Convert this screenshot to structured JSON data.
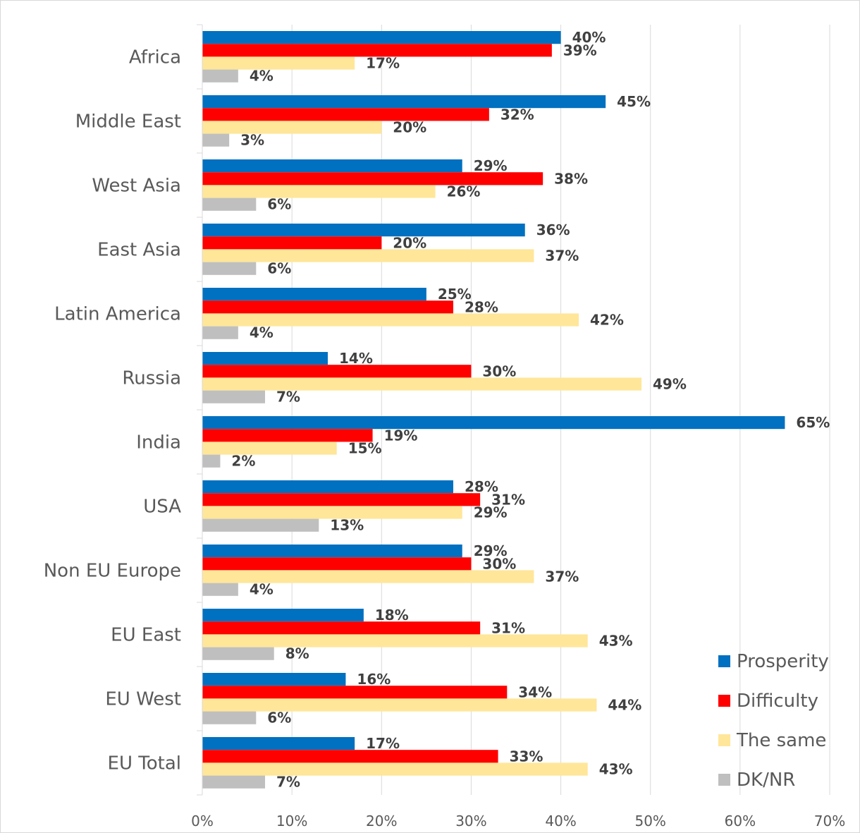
{
  "chart_data": {
    "type": "bar",
    "orientation": "horizontal",
    "categories": [
      "Africa",
      "Middle East",
      "West Asia",
      "East Asia",
      "Latin America",
      "Russia",
      "India",
      "USA",
      "Non EU Europe",
      "EU East",
      "EU West",
      "EU Total"
    ],
    "series": [
      {
        "name": "Prosperity",
        "color": "#0070c0",
        "values": [
          40,
          45,
          29,
          36,
          25,
          14,
          65,
          28,
          29,
          18,
          16,
          17
        ]
      },
      {
        "name": "Difficulty",
        "color": "#ff0000",
        "values": [
          39,
          32,
          38,
          20,
          28,
          30,
          19,
          31,
          30,
          31,
          34,
          33
        ]
      },
      {
        "name": "The same",
        "color": "#ffe699",
        "values": [
          17,
          20,
          26,
          37,
          42,
          49,
          15,
          29,
          37,
          43,
          44,
          43
        ]
      },
      {
        "name": "DK/NR",
        "color": "#bfbfbf",
        "values": [
          4,
          3,
          6,
          6,
          4,
          7,
          2,
          13,
          4,
          8,
          6,
          7
        ]
      }
    ],
    "xlim": [
      0,
      70
    ],
    "x_ticks": [
      "0%",
      "10%",
      "20%",
      "30%",
      "40%",
      "50%",
      "60%",
      "70%"
    ],
    "value_suffix": "%",
    "grid": "vertical",
    "legend_position": "bottom-right",
    "title": "",
    "xlabel": "",
    "ylabel": ""
  }
}
